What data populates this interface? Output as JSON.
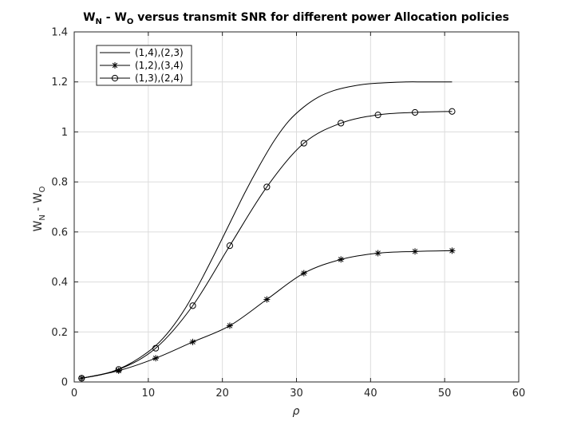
{
  "chart_data": {
    "type": "line",
    "title": {
      "w1": "W",
      "s1": "N",
      "mid": " - W",
      "s2": "O",
      "rest": " versus transmit SNR for different power Allocation policies"
    },
    "xlabel": "ρ",
    "ylabel": {
      "w1": "W",
      "s1": "N",
      "mid": " - W",
      "s2": "O"
    },
    "xlim": [
      0,
      60
    ],
    "ylim": [
      0,
      1.4
    ],
    "xticks": [
      0,
      10,
      20,
      30,
      40,
      50,
      60
    ],
    "yticks": [
      0,
      0.2,
      0.4,
      0.6,
      0.8,
      1,
      1.2,
      1.4
    ],
    "xtick_labels": [
      "0",
      "10",
      "20",
      "30",
      "40",
      "50",
      "60"
    ],
    "ytick_labels": [
      "0",
      "0.2",
      "0.4",
      "0.6",
      "0.8",
      "1",
      "1.2",
      "1.4"
    ],
    "grid": true,
    "legend_position": "top-left",
    "series": [
      {
        "name": "(1,4),(2,3)",
        "marker": "none",
        "color": "#000000",
        "x": [
          1,
          3,
          5,
          7,
          9,
          11,
          13,
          15,
          17,
          19,
          21,
          23,
          25,
          27,
          29,
          31,
          33,
          35,
          37,
          39,
          41,
          43,
          45,
          47,
          49,
          51
        ],
        "y": [
          0.015,
          0.025,
          0.04,
          0.065,
          0.1,
          0.145,
          0.21,
          0.295,
          0.4,
          0.515,
          0.635,
          0.755,
          0.865,
          0.965,
          1.045,
          1.1,
          1.14,
          1.165,
          1.18,
          1.19,
          1.195,
          1.198,
          1.2,
          1.2,
          1.2,
          1.2
        ]
      },
      {
        "name": "(1,2),(3,4)",
        "marker": "asterisk",
        "color": "#000000",
        "x": [
          1,
          6,
          11,
          16,
          21,
          26,
          31,
          36,
          41,
          46,
          51
        ],
        "y": [
          0.015,
          0.045,
          0.095,
          0.16,
          0.225,
          0.33,
          0.435,
          0.49,
          0.515,
          0.522,
          0.525
        ]
      },
      {
        "name": "(1,3),(2,4)",
        "marker": "circle",
        "color": "#000000",
        "x": [
          1,
          6,
          11,
          16,
          21,
          26,
          31,
          36,
          41,
          46,
          51
        ],
        "y": [
          0.015,
          0.05,
          0.135,
          0.305,
          0.545,
          0.78,
          0.955,
          1.035,
          1.068,
          1.078,
          1.082
        ]
      }
    ]
  }
}
